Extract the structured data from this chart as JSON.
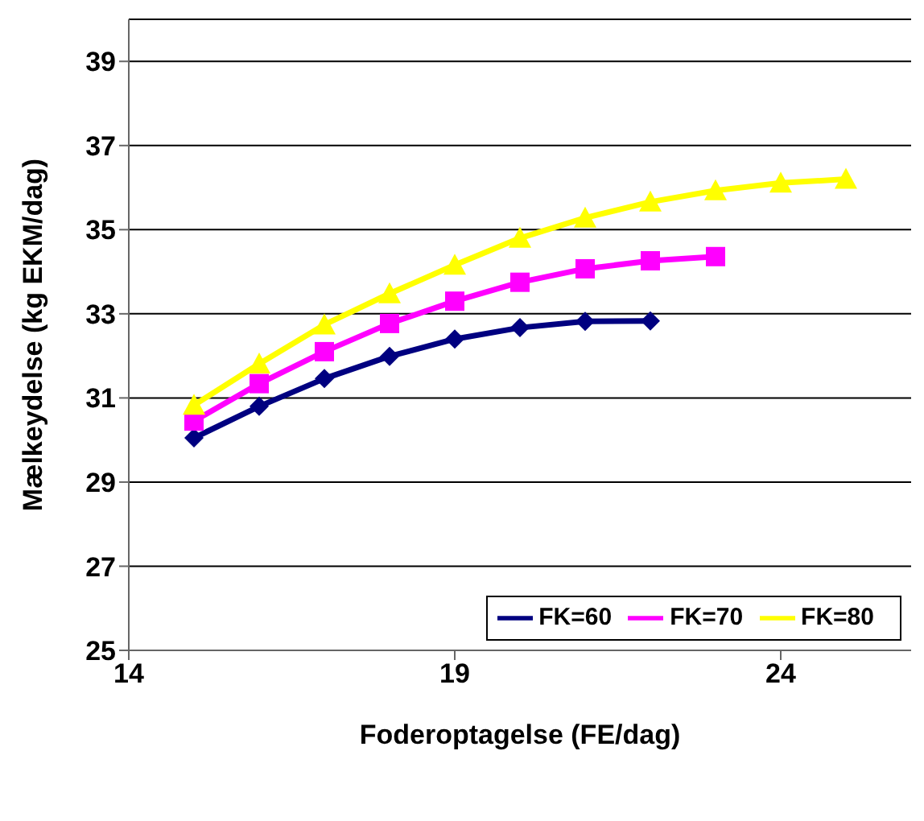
{
  "chart_data": {
    "type": "line",
    "xlabel": "Foderoptagelse (FE/dag)",
    "ylabel": "Mælkeydelse (kg EKM/dag)",
    "xlim": [
      14,
      26
    ],
    "xticks": [
      14,
      19,
      24
    ],
    "ylim": [
      25,
      40
    ],
    "yticks": [
      25,
      27,
      29,
      31,
      33,
      35,
      37,
      39
    ],
    "grid": "y",
    "legend": "bottom right",
    "series": [
      {
        "name": "FK=60",
        "color": "#000080",
        "marker": "diamond",
        "x": [
          15,
          16,
          17,
          18,
          19,
          20,
          21,
          22
        ],
        "values": [
          30.05,
          30.8,
          31.46,
          31.99,
          32.4,
          32.67,
          32.82,
          32.83
        ]
      },
      {
        "name": "FK=70",
        "color": "#ff00ff",
        "marker": "square",
        "x": [
          15,
          16,
          17,
          18,
          19,
          20,
          21,
          22,
          23
        ],
        "values": [
          30.45,
          31.34,
          32.1,
          32.77,
          33.3,
          33.75,
          34.07,
          34.26,
          34.36
        ]
      },
      {
        "name": "FK=80",
        "color": "#ffff00",
        "marker": "triangle",
        "x": [
          15,
          16,
          17,
          18,
          19,
          20,
          21,
          22,
          23,
          24,
          25
        ],
        "values": [
          30.83,
          31.81,
          32.74,
          33.48,
          34.16,
          34.8,
          35.28,
          35.66,
          35.93,
          36.11,
          36.2
        ]
      }
    ]
  }
}
